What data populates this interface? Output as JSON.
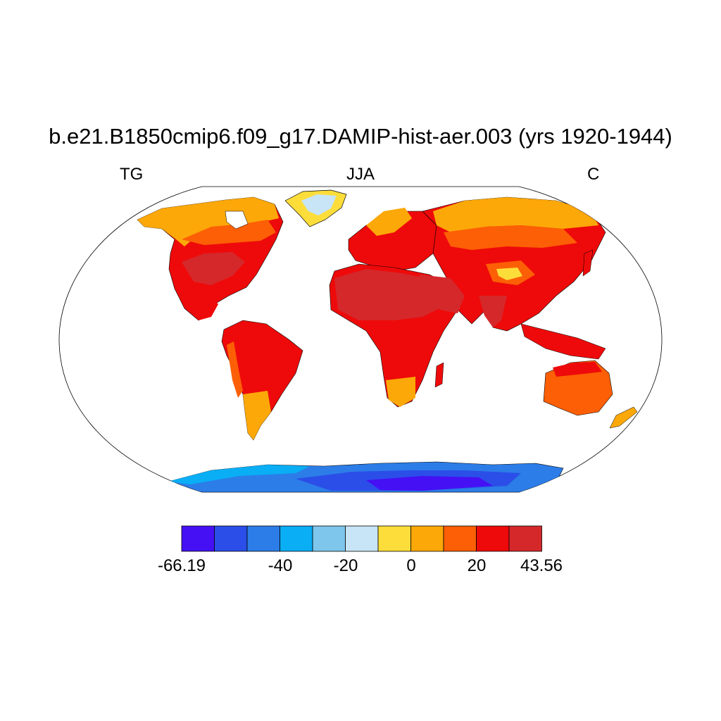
{
  "title": "b.e21.B1850cmip6.f09_g17.DAMIP-hist-aer.003 (yrs 1920-1944)",
  "subtitle_left": "TG",
  "subtitle_center": "JJA",
  "subtitle_right": "C",
  "colorbar": {
    "colors": [
      "#4510f4",
      "#2b4ee8",
      "#2c7de8",
      "#0aaef5",
      "#7ec6ec",
      "#c7e5f6",
      "#fddd3a",
      "#fca808",
      "#fc5f05",
      "#ee0a0a",
      "#d5282b"
    ],
    "labels": [
      "-66.19",
      "-40",
      "-20",
      "0",
      "20",
      "43.56"
    ]
  },
  "colors": {
    "ocean": "#ffffff",
    "coastline": "#000000"
  }
}
